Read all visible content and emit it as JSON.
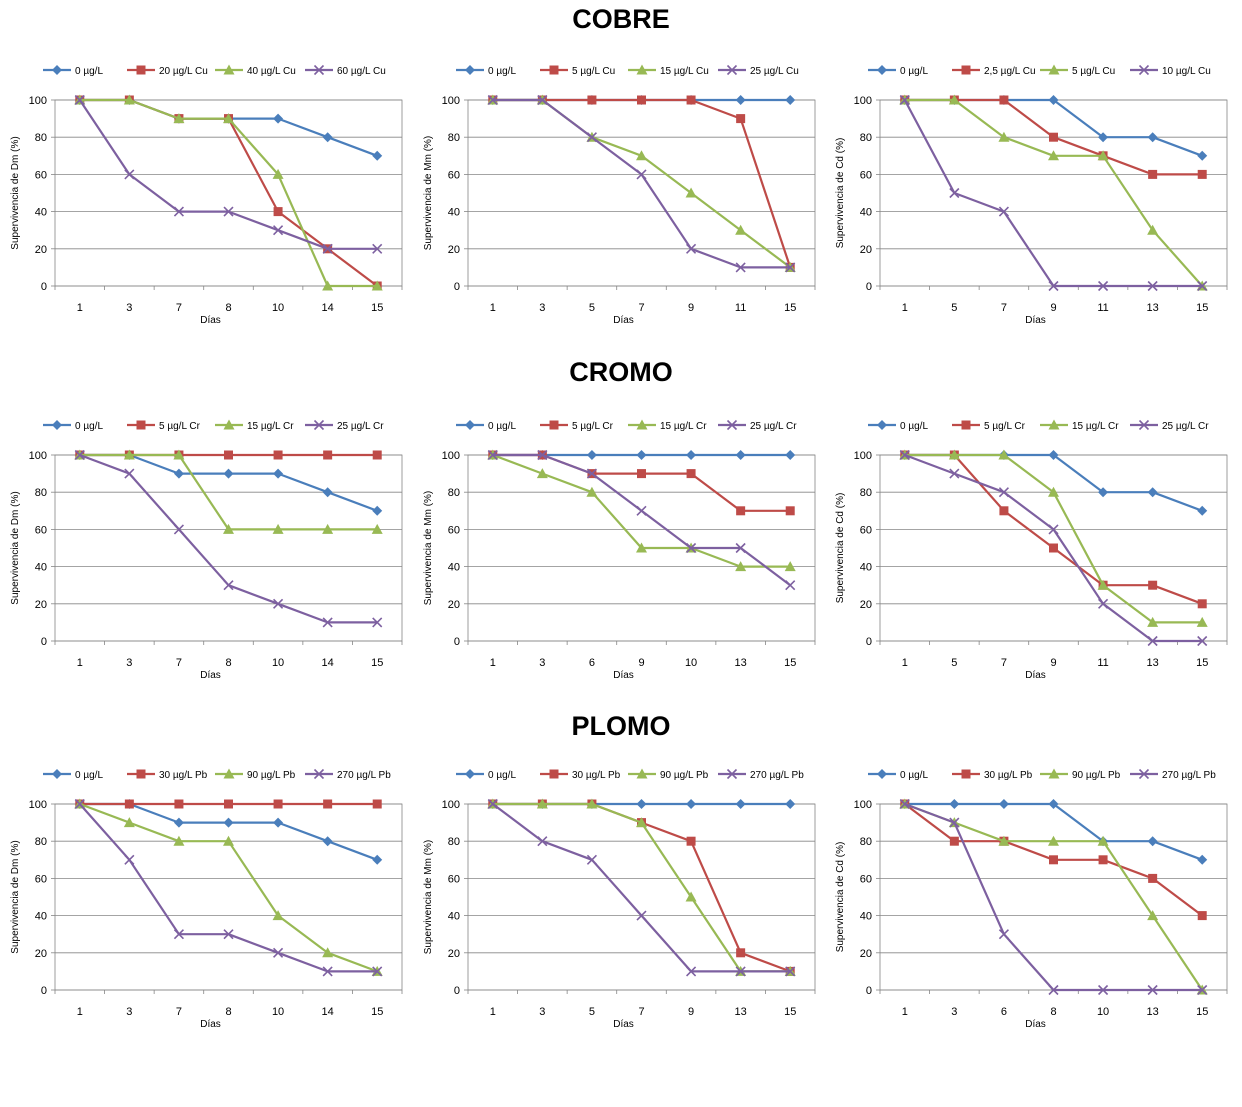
{
  "sections": [
    {
      "title": "COBRE",
      "charts": [
        {
          "type": "line",
          "xlabel": "Días",
          "ylabel": "Supervivencia de Dm (%)",
          "categories": [
            "1",
            "3",
            "7",
            "8",
            "10",
            "14",
            "15"
          ],
          "ylim": [
            0,
            100
          ],
          "yticks": [
            0,
            20,
            40,
            60,
            80,
            100
          ],
          "series": [
            {
              "name": "0 µg/L",
              "values": [
                100,
                100,
                90,
                90,
                90,
                80,
                70
              ]
            },
            {
              "name": "20 µg/L Cu",
              "values": [
                100,
                100,
                90,
                90,
                40,
                20,
                0
              ]
            },
            {
              "name": "40 µg/L Cu",
              "values": [
                100,
                100,
                90,
                90,
                60,
                0,
                0
              ]
            },
            {
              "name": "60 µg/L Cu",
              "values": [
                100,
                60,
                40,
                40,
                30,
                20,
                20
              ]
            }
          ]
        },
        {
          "type": "line",
          "xlabel": "Días",
          "ylabel": "Supervivencia de Mm (%)",
          "categories": [
            "1",
            "3",
            "5",
            "7",
            "9",
            "11",
            "15"
          ],
          "ylim": [
            0,
            100
          ],
          "yticks": [
            0,
            20,
            40,
            60,
            80,
            100
          ],
          "series": [
            {
              "name": "0 µg/L",
              "values": [
                100,
                100,
                100,
                100,
                100,
                100,
                100
              ]
            },
            {
              "name": "5 µg/L Cu",
              "values": [
                100,
                100,
                100,
                100,
                100,
                90,
                10
              ]
            },
            {
              "name": "15 µg/L Cu",
              "values": [
                100,
                100,
                80,
                70,
                50,
                30,
                10
              ]
            },
            {
              "name": "25 µg/L Cu",
              "values": [
                100,
                100,
                80,
                60,
                20,
                10,
                10
              ]
            }
          ]
        },
        {
          "type": "line",
          "xlabel": "Días",
          "ylabel": "Supervivencia de Cd (%)",
          "categories": [
            "1",
            "5",
            "7",
            "9",
            "11",
            "13",
            "15"
          ],
          "ylim": [
            0,
            100
          ],
          "yticks": [
            0,
            20,
            40,
            60,
            80,
            100
          ],
          "series": [
            {
              "name": "0 µg/L",
              "values": [
                100,
                100,
                100,
                100,
                80,
                80,
                70
              ]
            },
            {
              "name": "2,5 µg/L Cu",
              "values": [
                100,
                100,
                100,
                80,
                70,
                60,
                60
              ]
            },
            {
              "name": "5 µg/L Cu",
              "values": [
                100,
                100,
                80,
                70,
                70,
                30,
                0
              ]
            },
            {
              "name": "10 µg/L Cu",
              "values": [
                100,
                50,
                40,
                0,
                0,
                0,
                0
              ]
            }
          ]
        }
      ]
    },
    {
      "title": "CROMO",
      "charts": [
        {
          "type": "line",
          "xlabel": "Días",
          "ylabel": "Supervivencia de Dm (%)",
          "categories": [
            "1",
            "3",
            "7",
            "8",
            "10",
            "14",
            "15"
          ],
          "ylim": [
            0,
            100
          ],
          "yticks": [
            0,
            20,
            40,
            60,
            80,
            100
          ],
          "series": [
            {
              "name": "0 µg/L",
              "values": [
                100,
                100,
                90,
                90,
                90,
                80,
                70
              ]
            },
            {
              "name": "5 µg/L  Cr",
              "values": [
                100,
                100,
                100,
                100,
                100,
                100,
                100
              ]
            },
            {
              "name": "15 µg/L  Cr",
              "values": [
                100,
                100,
                100,
                60,
                60,
                60,
                60
              ]
            },
            {
              "name": "25 µg/L  Cr",
              "values": [
                100,
                90,
                60,
                30,
                20,
                10,
                10
              ]
            }
          ]
        },
        {
          "type": "line",
          "xlabel": "Días",
          "ylabel": "Supervivencia de Mm (%)",
          "categories": [
            "1",
            "3",
            "6",
            "9",
            "10",
            "13",
            "15"
          ],
          "ylim": [
            0,
            100
          ],
          "yticks": [
            0,
            20,
            40,
            60,
            80,
            100
          ],
          "series": [
            {
              "name": "0 µg/L",
              "values": [
                100,
                100,
                100,
                100,
                100,
                100,
                100
              ]
            },
            {
              "name": "5 µg/L Cr",
              "values": [
                100,
                100,
                90,
                90,
                90,
                70,
                70
              ]
            },
            {
              "name": "15 µg/L Cr",
              "values": [
                100,
                90,
                80,
                50,
                50,
                40,
                40
              ]
            },
            {
              "name": "25 µg/L Cr",
              "values": [
                100,
                100,
                90,
                70,
                50,
                50,
                30
              ]
            }
          ]
        },
        {
          "type": "line",
          "xlabel": "Días",
          "ylabel": "Supervivencia de Cd (%)",
          "categories": [
            "1",
            "5",
            "7",
            "9",
            "11",
            "13",
            "15"
          ],
          "ylim": [
            0,
            100
          ],
          "yticks": [
            0,
            20,
            40,
            60,
            80,
            100
          ],
          "series": [
            {
              "name": "0 µg/L",
              "values": [
                100,
                100,
                100,
                100,
                80,
                80,
                70
              ]
            },
            {
              "name": "5 µg/L Cr",
              "values": [
                100,
                100,
                70,
                50,
                30,
                30,
                20
              ]
            },
            {
              "name": "15 µg/L Cr",
              "values": [
                100,
                100,
                100,
                80,
                30,
                10,
                10
              ]
            },
            {
              "name": "25 µg/L Cr",
              "values": [
                100,
                90,
                80,
                60,
                20,
                0,
                0
              ]
            }
          ]
        }
      ]
    },
    {
      "title": "PLOMO",
      "charts": [
        {
          "type": "line",
          "xlabel": "Días",
          "ylabel": "Supervivencia de Dm (%)",
          "categories": [
            "1",
            "3",
            "7",
            "8",
            "10",
            "14",
            "15"
          ],
          "ylim": [
            0,
            100
          ],
          "yticks": [
            0,
            20,
            40,
            60,
            80,
            100
          ],
          "series": [
            {
              "name": "0 µg/L",
              "values": [
                100,
                100,
                90,
                90,
                90,
                80,
                70
              ]
            },
            {
              "name": "30 µg/L Pb",
              "values": [
                100,
                100,
                100,
                100,
                100,
                100,
                100
              ]
            },
            {
              "name": "90 µg/L Pb",
              "values": [
                100,
                90,
                80,
                80,
                40,
                20,
                10
              ]
            },
            {
              "name": "270 µg/L Pb",
              "values": [
                100,
                70,
                30,
                30,
                20,
                10,
                10
              ]
            }
          ]
        },
        {
          "type": "line",
          "xlabel": "Días",
          "ylabel": "Supervivencia de Mm (%)",
          "categories": [
            "1",
            "3",
            "5",
            "7",
            "9",
            "13",
            "15"
          ],
          "ylim": [
            0,
            100
          ],
          "yticks": [
            0,
            20,
            40,
            60,
            80,
            100
          ],
          "series": [
            {
              "name": "0 µg/L",
              "values": [
                100,
                100,
                100,
                100,
                100,
                100,
                100
              ]
            },
            {
              "name": "30 µg/L Pb",
              "values": [
                100,
                100,
                100,
                90,
                80,
                20,
                10
              ]
            },
            {
              "name": "90 µg/L Pb",
              "values": [
                100,
                100,
                100,
                90,
                50,
                10,
                10
              ]
            },
            {
              "name": "270 µg/L Pb",
              "values": [
                100,
                80,
                70,
                40,
                10,
                10,
                10
              ]
            }
          ]
        },
        {
          "type": "line",
          "xlabel": "Días",
          "ylabel": "Supervivencia de Cd (%)",
          "categories": [
            "1",
            "3",
            "6",
            "8",
            "10",
            "13",
            "15"
          ],
          "ylim": [
            0,
            100
          ],
          "yticks": [
            0,
            20,
            40,
            60,
            80,
            100
          ],
          "series": [
            {
              "name": "0 µg/L",
              "values": [
                100,
                100,
                100,
                100,
                80,
                80,
                70
              ]
            },
            {
              "name": "30 µg/L Pb",
              "values": [
                100,
                80,
                80,
                70,
                70,
                60,
                40
              ]
            },
            {
              "name": "90 µg/L Pb",
              "values": [
                100,
                90,
                80,
                80,
                80,
                40,
                0
              ]
            },
            {
              "name": "270 µg/L Pb",
              "values": [
                100,
                90,
                30,
                0,
                0,
                0,
                0
              ]
            }
          ]
        }
      ]
    }
  ],
  "series_colors": [
    "#4A7EBB",
    "#BE4B48",
    "#98B954",
    "#7D60A0"
  ],
  "series_markers": [
    "diamond",
    "square",
    "triangle",
    "x"
  ]
}
